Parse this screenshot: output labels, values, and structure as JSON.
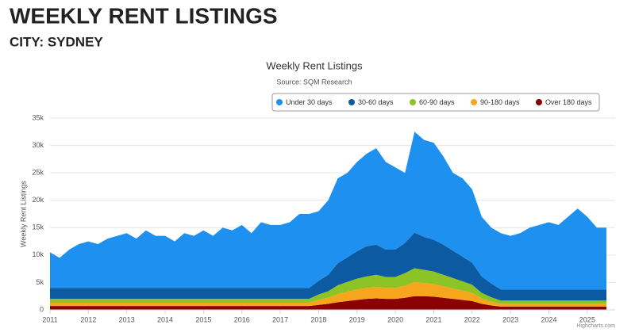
{
  "header": {
    "title": "WEEKLY RENT LISTINGS",
    "subtitle": "CITY: SYDNEY"
  },
  "chart_data": {
    "type": "stacked-area",
    "title": "Weekly Rent Listings",
    "subtitle": "Source: SQM Research",
    "y_label": "Weekly Rent Listings",
    "credit": "Highcharts.com",
    "x": [
      2011,
      2011.25,
      2011.5,
      2011.75,
      2012,
      2012.25,
      2012.5,
      2012.75,
      2013,
      2013.25,
      2013.5,
      2013.75,
      2014,
      2014.25,
      2014.5,
      2014.75,
      2015,
      2015.25,
      2015.5,
      2015.75,
      2016,
      2016.25,
      2016.5,
      2016.75,
      2017,
      2017.25,
      2017.5,
      2017.75,
      2018,
      2018.25,
      2018.5,
      2018.75,
      2019,
      2019.25,
      2019.5,
      2019.75,
      2020,
      2020.25,
      2020.5,
      2020.75,
      2021,
      2021.25,
      2021.5,
      2021.75,
      2022,
      2022.25,
      2022.5,
      2022.75,
      2023,
      2023.25,
      2023.5,
      2023.75,
      2024,
      2024.25,
      2024.5,
      2024.75,
      2025,
      2025.25,
      2025.5
    ],
    "xlim": [
      2011,
      2025.5
    ],
    "xticks": [
      2011,
      2012,
      2013,
      2014,
      2015,
      2016,
      2017,
      2018,
      2019,
      2020,
      2021,
      2022,
      2023,
      2024,
      2025
    ],
    "ylim": [
      0,
      35000
    ],
    "yticks": [
      0,
      {
        "value": 5000,
        "label": "5k"
      },
      {
        "value": 10000,
        "label": "10k"
      },
      {
        "value": 15000,
        "label": "15k"
      },
      {
        "value": 20000,
        "label": "20k"
      },
      {
        "value": 25000,
        "label": "25k"
      },
      {
        "value": 30000,
        "label": "30k"
      },
      {
        "value": 35000,
        "label": "35k"
      }
    ],
    "grid": true,
    "legend": "top-right",
    "series": [
      {
        "name": "Under 30 days",
        "color": "#1e90f0",
        "values": [
          6500,
          5500,
          7000,
          8000,
          8500,
          8000,
          9000,
          9500,
          10000,
          9000,
          10500,
          9500,
          9500,
          8500,
          10000,
          9500,
          10500,
          9500,
          11000,
          10500,
          11500,
          10000,
          12000,
          11500,
          11500,
          12000,
          13500,
          13500,
          12700,
          13600,
          15500,
          15400,
          16300,
          16900,
          17600,
          16000,
          15000,
          12800,
          18400,
          17700,
          17700,
          16100,
          14200,
          14300,
          13400,
          10900,
          10200,
          10300,
          9800,
          10300,
          11300,
          11800,
          12300,
          11800,
          13300,
          14800,
          13300,
          11300,
          11300
        ]
      },
      {
        "name": "30-60 days",
        "color": "#0b5aa2",
        "values": [
          2000,
          2000,
          2000,
          2000,
          2000,
          2000,
          2000,
          2000,
          2000,
          2000,
          2000,
          2000,
          2000,
          2000,
          2000,
          2000,
          2000,
          2000,
          2000,
          2000,
          2000,
          2000,
          2000,
          2000,
          2000,
          2000,
          2000,
          2000,
          2500,
          3000,
          4000,
          4500,
          5000,
          5500,
          5500,
          5000,
          5000,
          5500,
          6500,
          6000,
          5800,
          5500,
          5000,
          4500,
          4000,
          3000,
          2500,
          2000,
          2000,
          2000,
          2000,
          2000,
          2000,
          2000,
          2000,
          2000,
          2000,
          2000,
          2000
        ]
      },
      {
        "name": "60-90 days",
        "color": "#8cc425",
        "values": [
          700,
          700,
          700,
          700,
          700,
          700,
          700,
          700,
          700,
          700,
          700,
          700,
          700,
          700,
          700,
          700,
          700,
          700,
          700,
          700,
          700,
          700,
          700,
          700,
          700,
          700,
          700,
          700,
          1000,
          1200,
          1600,
          1800,
          2000,
          2100,
          2200,
          2000,
          2000,
          2300,
          2500,
          2400,
          2300,
          2100,
          1900,
          1700,
          1500,
          1000,
          800,
          600,
          600,
          600,
          600,
          600,
          600,
          600,
          600,
          600,
          600,
          600,
          600
        ]
      },
      {
        "name": "90-180 days",
        "color": "#f7a51c",
        "values": [
          600,
          600,
          600,
          600,
          600,
          600,
          600,
          600,
          600,
          600,
          600,
          600,
          600,
          600,
          600,
          600,
          600,
          600,
          600,
          600,
          600,
          600,
          600,
          600,
          600,
          600,
          600,
          600,
          900,
          1100,
          1500,
          1700,
          1900,
          2000,
          2100,
          2000,
          2000,
          2200,
          2600,
          2400,
          2300,
          2100,
          1900,
          1700,
          1500,
          1000,
          700,
          500,
          500,
          500,
          500,
          500,
          500,
          500,
          500,
          500,
          500,
          500,
          500
        ]
      },
      {
        "name": "Over 180 days",
        "color": "#8b0000",
        "values": [
          700,
          700,
          700,
          700,
          700,
          700,
          700,
          700,
          700,
          700,
          700,
          700,
          700,
          700,
          700,
          700,
          700,
          700,
          700,
          700,
          700,
          700,
          700,
          700,
          700,
          700,
          700,
          700,
          900,
          1100,
          1400,
          1600,
          1800,
          2000,
          2100,
          2000,
          2000,
          2200,
          2500,
          2500,
          2400,
          2200,
          2000,
          1800,
          1600,
          1100,
          800,
          600,
          600,
          600,
          600,
          600,
          600,
          600,
          600,
          600,
          600,
          600,
          600
        ]
      }
    ]
  }
}
